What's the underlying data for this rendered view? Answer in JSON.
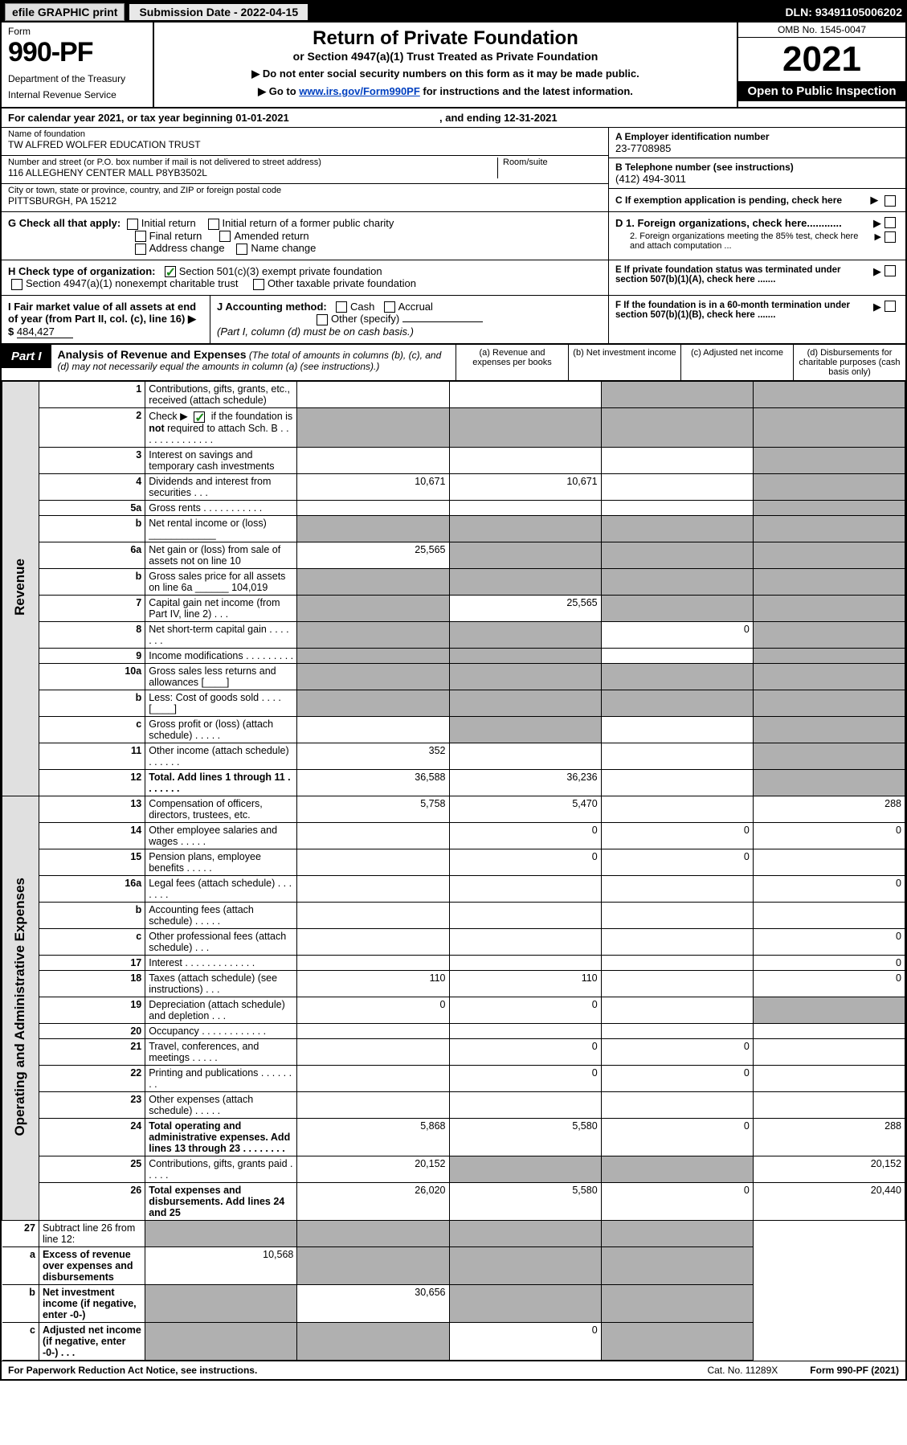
{
  "colors": {
    "black": "#000000",
    "white": "#ffffff",
    "light_grey": "#e0e0e0",
    "mid_grey": "#b0b0b0",
    "link": "#0040c0",
    "check_green": "#1a8a1a"
  },
  "topbar": {
    "efile": "efile GRAPHIC print",
    "subdate_label": "Submission Date - 2022-04-15",
    "dln": "DLN: 93491105006202"
  },
  "header": {
    "form_word": "Form",
    "form_number": "990-PF",
    "dept": "Department of the Treasury",
    "irs": "Internal Revenue Service",
    "title": "Return of Private Foundation",
    "subtitle": "or Section 4947(a)(1) Trust Treated as Private Foundation",
    "note1": "▶ Do not enter social security numbers on this form as it may be made public.",
    "note2_pre": "▶ Go to ",
    "note2_link": "www.irs.gov/Form990PF",
    "note2_post": " for instructions and the latest information.",
    "omb": "OMB No. 1545-0047",
    "year": "2021",
    "open": "Open to Public Inspection"
  },
  "calendar_line": {
    "pre": "For calendar year 2021, or tax year beginning 01-01-2021",
    "mid": ", and ending 12-31-2021"
  },
  "entity": {
    "name_label": "Name of foundation",
    "name": "TW ALFRED WOLFER EDUCATION TRUST",
    "addr_label": "Number and street (or P.O. box number if mail is not delivered to street address)",
    "addr": "116 ALLEGHENY CENTER MALL P8YB3502L",
    "room_label": "Room/suite",
    "city_label": "City or town, state or province, country, and ZIP or foreign postal code",
    "city": "PITTSBURGH, PA  15212",
    "ein_label": "A Employer identification number",
    "ein": "23-7708985",
    "tel_label": "B Telephone number (see instructions)",
    "tel": "(412) 494-3011",
    "pending_label": "C If exemption application is pending, check here"
  },
  "checks": {
    "g_label": "G Check all that apply:",
    "g_items": [
      "Initial return",
      "Initial return of a former public charity",
      "Final return",
      "Amended return",
      "Address change",
      "Name change"
    ],
    "h_label": "H Check type of organization:",
    "h_501c3": "Section 501(c)(3) exempt private foundation",
    "h_4947": "Section 4947(a)(1) nonexempt charitable trust",
    "h_other": "Other taxable private foundation",
    "i_label": "I Fair market value of all assets at end of year (from Part II, col. (c), line 16) ▶ $",
    "i_value": "484,427",
    "j_label": "J Accounting method:",
    "j_cash": "Cash",
    "j_accrual": "Accrual",
    "j_other": "Other (specify)",
    "j_note": "(Part I, column (d) must be on cash basis.)",
    "d1": "D 1. Foreign organizations, check here............",
    "d2": "2. Foreign organizations meeting the 85% test, check here and attach computation ...",
    "e": "E  If private foundation status was terminated under section 507(b)(1)(A), check here .......",
    "f": "F  If the foundation is in a 60-month termination under section 507(b)(1)(B), check here ......."
  },
  "part1": {
    "label": "Part I",
    "title": "Analysis of Revenue and Expenses",
    "title_note": "(The total of amounts in columns (b), (c), and (d) may not necessarily equal the amounts in column (a) (see instructions).)",
    "col_a": "(a)  Revenue and expenses per books",
    "col_b": "(b)  Net investment income",
    "col_c": "(c)  Adjusted net income",
    "col_d": "(d)  Disbursements for charitable purposes (cash basis only)",
    "vtab_rev": "Revenue",
    "vtab_exp": "Operating and Administrative Expenses"
  },
  "rows": [
    {
      "n": "1",
      "d": "Contributions, gifts, grants, etc., received (attach schedule)",
      "a": "",
      "b": "",
      "c": "s",
      "dcol": "s"
    },
    {
      "n": "2",
      "d": "Check ▶ [✓] if the foundation is not required to attach Sch. B  .  .  .  .  .  .  .  .  .  .  .  .  .  .  .  .",
      "a": "s",
      "b": "s",
      "c": "s",
      "dcol": "s",
      "bold": false,
      "check": true
    },
    {
      "n": "3",
      "d": "Interest on savings and temporary cash investments",
      "a": "",
      "b": "",
      "c": "",
      "dcol": "s"
    },
    {
      "n": "4",
      "d": "Dividends and interest from securities  .  .  .",
      "a": "10,671",
      "b": "10,671",
      "c": "",
      "dcol": "s"
    },
    {
      "n": "5a",
      "d": "Gross rents  .  .  .  .  .  .  .  .  .  .  .",
      "a": "",
      "b": "",
      "c": "",
      "dcol": "s"
    },
    {
      "n": "b",
      "d": "Net rental income or (loss)  ____________",
      "a": "s",
      "b": "s",
      "c": "s",
      "dcol": "s"
    },
    {
      "n": "6a",
      "d": "Net gain or (loss) from sale of assets not on line 10",
      "a": "25,565",
      "b": "s",
      "c": "s",
      "dcol": "s"
    },
    {
      "n": "b",
      "d": "Gross sales price for all assets on line 6a ______ 104,019",
      "a": "s",
      "b": "s",
      "c": "s",
      "dcol": "s"
    },
    {
      "n": "7",
      "d": "Capital gain net income (from Part IV, line 2)  .  .  .",
      "a": "s",
      "b": "25,565",
      "c": "s",
      "dcol": "s"
    },
    {
      "n": "8",
      "d": "Net short-term capital gain  .  .  .  .  .  .  .",
      "a": "s",
      "b": "s",
      "c": "0",
      "dcol": "s"
    },
    {
      "n": "9",
      "d": "Income modifications  .  .  .  .  .  .  .  .  .",
      "a": "s",
      "b": "s",
      "c": "",
      "dcol": "s"
    },
    {
      "n": "10a",
      "d": "Gross sales less returns and allowances  [____]",
      "a": "s",
      "b": "s",
      "c": "s",
      "dcol": "s"
    },
    {
      "n": "b",
      "d": "Less: Cost of goods sold  .  .  .  .  [____]",
      "a": "s",
      "b": "s",
      "c": "s",
      "dcol": "s"
    },
    {
      "n": "c",
      "d": "Gross profit or (loss) (attach schedule)  .  .  .  .  .",
      "a": "",
      "b": "s",
      "c": "",
      "dcol": "s"
    },
    {
      "n": "11",
      "d": "Other income (attach schedule)  .  .  .  .  .  .",
      "a": "352",
      "b": "",
      "c": "",
      "dcol": "s"
    },
    {
      "n": "12",
      "d": "Total. Add lines 1 through 11  .  .  .  .  .  .  .",
      "a": "36,588",
      "b": "36,236",
      "c": "",
      "dcol": "s",
      "bold": true
    }
  ],
  "exp_rows": [
    {
      "n": "13",
      "d": "Compensation of officers, directors, trustees, etc.",
      "a": "5,758",
      "b": "5,470",
      "c": "",
      "dcol": "288"
    },
    {
      "n": "14",
      "d": "Other employee salaries and wages  .  .  .  .  .",
      "a": "",
      "b": "0",
      "c": "0",
      "dcol": "0"
    },
    {
      "n": "15",
      "d": "Pension plans, employee benefits  .  .  .  .  .",
      "a": "",
      "b": "0",
      "c": "0",
      "dcol": ""
    },
    {
      "n": "16a",
      "d": "Legal fees (attach schedule)  .  .  .  .  .  .  .",
      "a": "",
      "b": "",
      "c": "",
      "dcol": "0"
    },
    {
      "n": "b",
      "d": "Accounting fees (attach schedule)  .  .  .  .  .",
      "a": "",
      "b": "",
      "c": "",
      "dcol": ""
    },
    {
      "n": "c",
      "d": "Other professional fees (attach schedule)  .  .  .",
      "a": "",
      "b": "",
      "c": "",
      "dcol": "0"
    },
    {
      "n": "17",
      "d": "Interest  .  .  .  .  .  .  .  .  .  .  .  .  .",
      "a": "",
      "b": "",
      "c": "",
      "dcol": "0"
    },
    {
      "n": "18",
      "d": "Taxes (attach schedule) (see instructions)  .  .  .",
      "a": "110",
      "b": "110",
      "c": "",
      "dcol": "0"
    },
    {
      "n": "19",
      "d": "Depreciation (attach schedule) and depletion  .  .  .",
      "a": "0",
      "b": "0",
      "c": "",
      "dcol": "s"
    },
    {
      "n": "20",
      "d": "Occupancy  .  .  .  .  .  .  .  .  .  .  .  .",
      "a": "",
      "b": "",
      "c": "",
      "dcol": ""
    },
    {
      "n": "21",
      "d": "Travel, conferences, and meetings  .  .  .  .  .",
      "a": "",
      "b": "0",
      "c": "0",
      "dcol": ""
    },
    {
      "n": "22",
      "d": "Printing and publications  .  .  .  .  .  .  .  .",
      "a": "",
      "b": "0",
      "c": "0",
      "dcol": ""
    },
    {
      "n": "23",
      "d": "Other expenses (attach schedule)  .  .  .  .  .",
      "a": "",
      "b": "",
      "c": "",
      "dcol": ""
    },
    {
      "n": "24",
      "d": "Total operating and administrative expenses. Add lines 13 through 23  .  .  .  .  .  .  .  .",
      "a": "5,868",
      "b": "5,580",
      "c": "0",
      "dcol": "288",
      "bold": true
    },
    {
      "n": "25",
      "d": "Contributions, gifts, grants paid  .  .  .  .  .",
      "a": "20,152",
      "b": "s",
      "c": "s",
      "dcol": "20,152"
    },
    {
      "n": "26",
      "d": "Total expenses and disbursements. Add lines 24 and 25",
      "a": "26,020",
      "b": "5,580",
      "c": "0",
      "dcol": "20,440",
      "bold": true
    }
  ],
  "bottom_rows": [
    {
      "n": "27",
      "d": "Subtract line 26 from line 12:",
      "a": "s",
      "b": "s",
      "c": "s",
      "dcol": "s"
    },
    {
      "n": "a",
      "d": "Excess of revenue over expenses and disbursements",
      "a": "10,568",
      "b": "s",
      "c": "s",
      "dcol": "s",
      "bold": true
    },
    {
      "n": "b",
      "d": "Net investment income (if negative, enter -0-)",
      "a": "s",
      "b": "30,656",
      "c": "s",
      "dcol": "s",
      "bold": true
    },
    {
      "n": "c",
      "d": "Adjusted net income (if negative, enter -0-)  .  .  .",
      "a": "s",
      "b": "s",
      "c": "0",
      "dcol": "s",
      "bold": true
    }
  ],
  "footer": {
    "pra": "For Paperwork Reduction Act Notice, see instructions.",
    "cat": "Cat. No. 11289X",
    "formref": "Form 990-PF (2021)"
  }
}
